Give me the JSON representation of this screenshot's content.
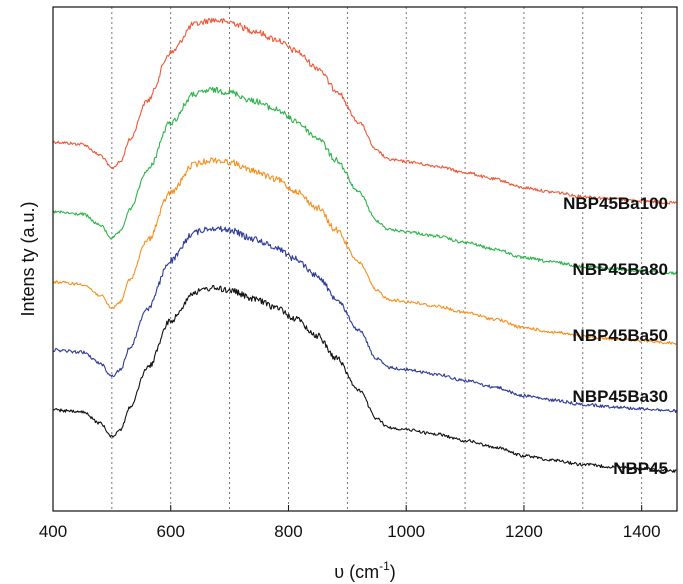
{
  "chart_data": {
    "type": "line",
    "title": "",
    "xlabel_main": "υ (cm",
    "xlabel_sup": "-1",
    "xlabel_tail": ")",
    "ylabel": "Intens ty (a.u.)",
    "xlim": [
      400,
      1460
    ],
    "x_ticks": [
      "400",
      "600",
      "800",
      "1000",
      "1200",
      "1400"
    ],
    "x_tick_values": [
      400,
      600,
      800,
      1000,
      1200,
      1400
    ],
    "grid_x": [
      500,
      600,
      700,
      800,
      900,
      1000,
      1100,
      1200,
      1300,
      1400
    ],
    "grid": true,
    "y_ticks_shown": false,
    "x": [
      400,
      450,
      480,
      500,
      515,
      530,
      560,
      600,
      640,
      670,
      700,
      740,
      780,
      810,
      850,
      880,
      920,
      950,
      970,
      1000,
      1050,
      1100,
      1150,
      1200,
      1250,
      1300,
      1350,
      1400,
      1460
    ],
    "series": [
      {
        "name": "NBP45Ba100",
        "color": "#f0583a",
        "values": [
          0.44,
          0.43,
          0.38,
          0.32,
          0.35,
          0.45,
          0.63,
          0.85,
          0.98,
          1.0,
          0.99,
          0.95,
          0.91,
          0.86,
          0.78,
          0.68,
          0.53,
          0.4,
          0.36,
          0.35,
          0.33,
          0.3,
          0.27,
          0.23,
          0.21,
          0.19,
          0.18,
          0.17,
          0.16
        ]
      },
      {
        "name": "NBP45Ba80",
        "color": "#2eb54a",
        "values": [
          0.44,
          0.43,
          0.38,
          0.32,
          0.35,
          0.45,
          0.63,
          0.85,
          0.98,
          1.0,
          0.99,
          0.95,
          0.91,
          0.86,
          0.78,
          0.68,
          0.53,
          0.4,
          0.36,
          0.35,
          0.33,
          0.3,
          0.27,
          0.23,
          0.21,
          0.19,
          0.18,
          0.17,
          0.16
        ]
      },
      {
        "name": "NBP45Ba50",
        "color": "#f7901e",
        "values": [
          0.44,
          0.43,
          0.38,
          0.32,
          0.35,
          0.45,
          0.63,
          0.85,
          0.98,
          1.0,
          0.99,
          0.95,
          0.91,
          0.86,
          0.78,
          0.68,
          0.53,
          0.4,
          0.36,
          0.35,
          0.33,
          0.3,
          0.27,
          0.23,
          0.21,
          0.19,
          0.18,
          0.17,
          0.16
        ]
      },
      {
        "name": "NBP45Ba30",
        "color": "#2e3b9a",
        "values": [
          0.44,
          0.43,
          0.38,
          0.32,
          0.35,
          0.45,
          0.63,
          0.85,
          0.98,
          1.0,
          0.99,
          0.95,
          0.91,
          0.86,
          0.78,
          0.68,
          0.53,
          0.4,
          0.36,
          0.35,
          0.33,
          0.3,
          0.27,
          0.23,
          0.21,
          0.19,
          0.18,
          0.17,
          0.16
        ]
      },
      {
        "name": "NBP45",
        "color": "#111111",
        "values": [
          0.44,
          0.43,
          0.38,
          0.32,
          0.35,
          0.45,
          0.63,
          0.85,
          0.98,
          1.0,
          0.99,
          0.95,
          0.91,
          0.86,
          0.78,
          0.68,
          0.53,
          0.4,
          0.36,
          0.35,
          0.33,
          0.3,
          0.27,
          0.23,
          0.21,
          0.19,
          0.18,
          0.17,
          0.16
        ]
      }
    ]
  }
}
